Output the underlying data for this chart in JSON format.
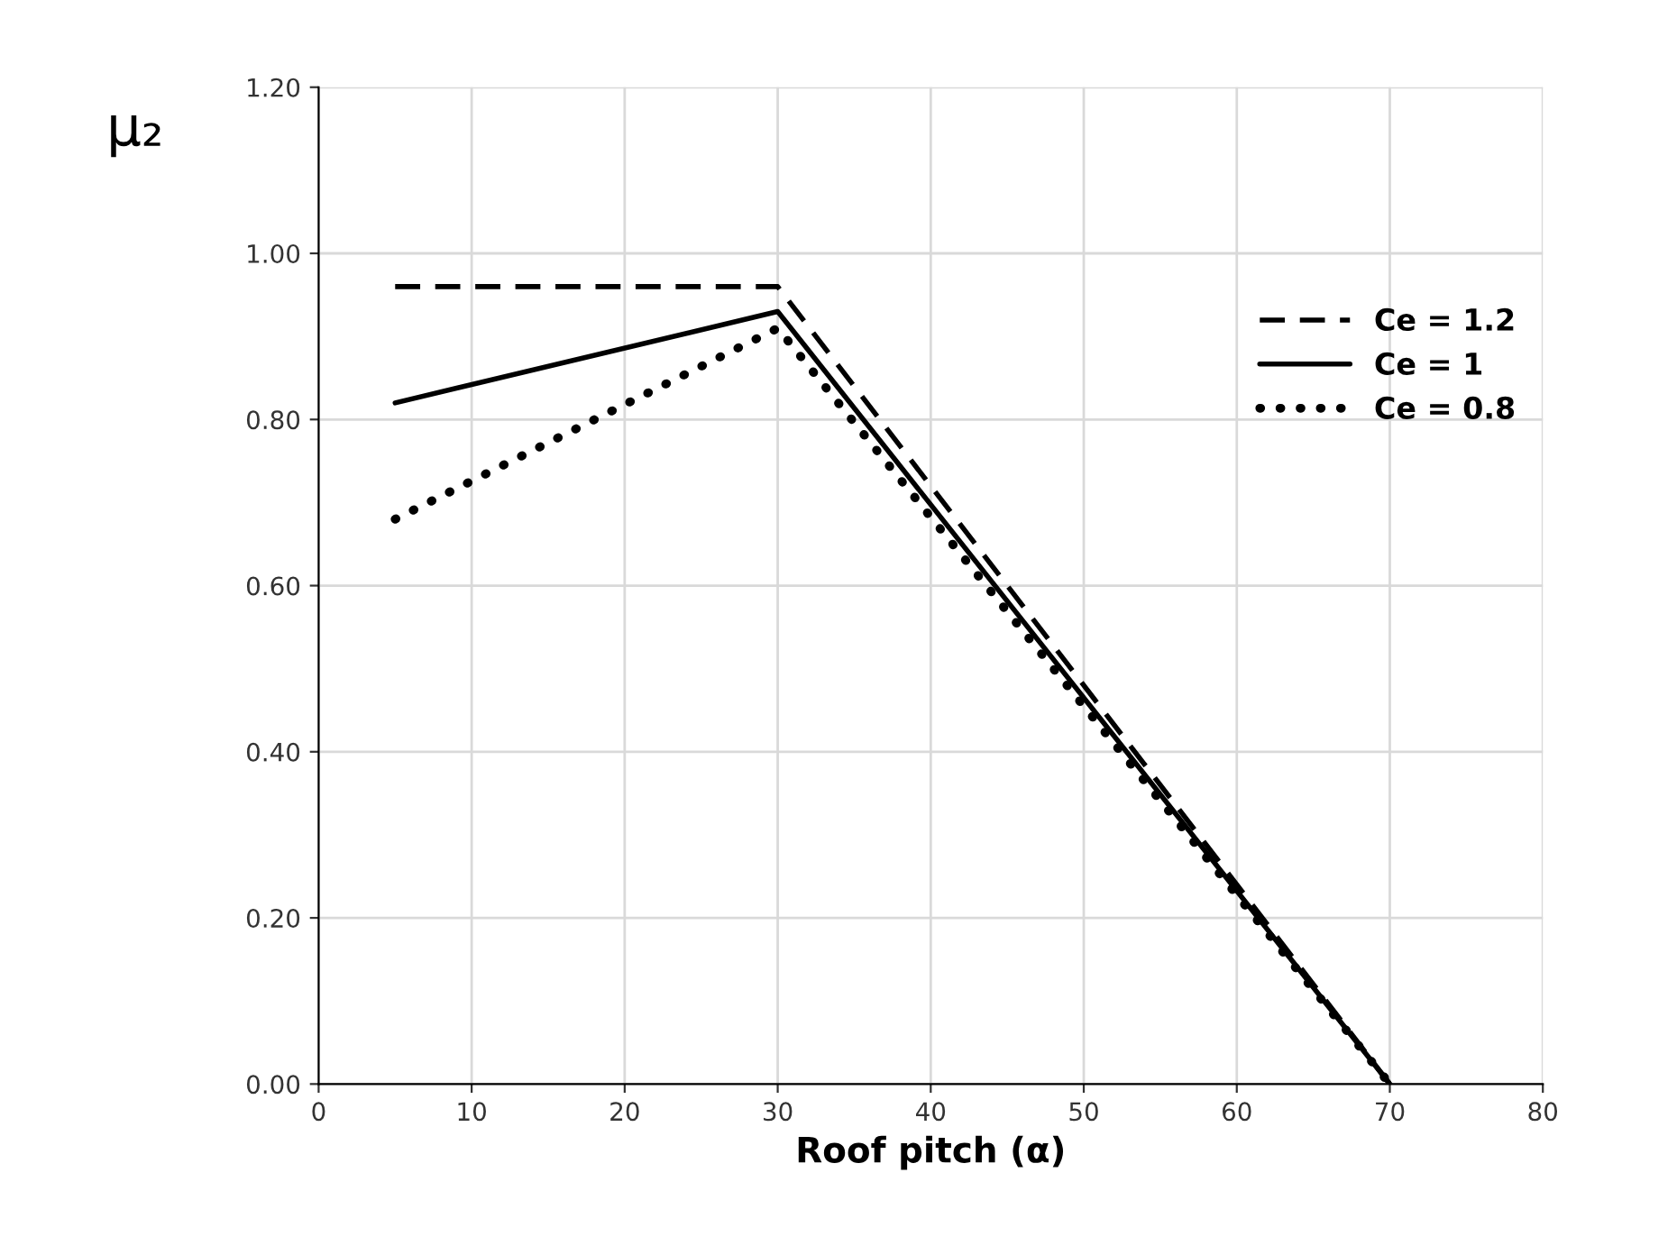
{
  "chart_data": {
    "type": "line",
    "xlabel": "Roof pitch (α)",
    "ylabel": "μ₂",
    "xlim": [
      0,
      80
    ],
    "xticks": [
      0,
      10,
      20,
      30,
      40,
      50,
      60,
      70,
      80
    ],
    "ylim": [
      0,
      1.2
    ],
    "yticks": [
      {
        "value": 0,
        "label": "0.00"
      },
      {
        "value": 0.2,
        "label": "0.20"
      },
      {
        "value": 0.4,
        "label": "0.40"
      },
      {
        "value": 0.6,
        "label": "0.60"
      },
      {
        "value": 0.8,
        "label": "0.80"
      },
      {
        "value": 1.0,
        "label": "1.00"
      },
      {
        "value": 1.2,
        "label": "1.20"
      }
    ],
    "grid": true,
    "legend": "right",
    "series": [
      {
        "name": "Ce = 1.2",
        "color": "#000000",
        "line_style": "dashed",
        "x": [
          5,
          30,
          70
        ],
        "values": [
          0.96,
          0.96,
          0
        ]
      },
      {
        "name": "Ce = 1",
        "color": "#000000",
        "line_style": "solid",
        "x": [
          5,
          30,
          70
        ],
        "values": [
          0.82,
          0.93,
          0
        ]
      },
      {
        "name": "Ce = 0.8",
        "color": "#000000",
        "line_style": "dotted",
        "x": [
          5,
          30,
          70
        ],
        "values": [
          0.68,
          0.91,
          0
        ]
      }
    ]
  }
}
